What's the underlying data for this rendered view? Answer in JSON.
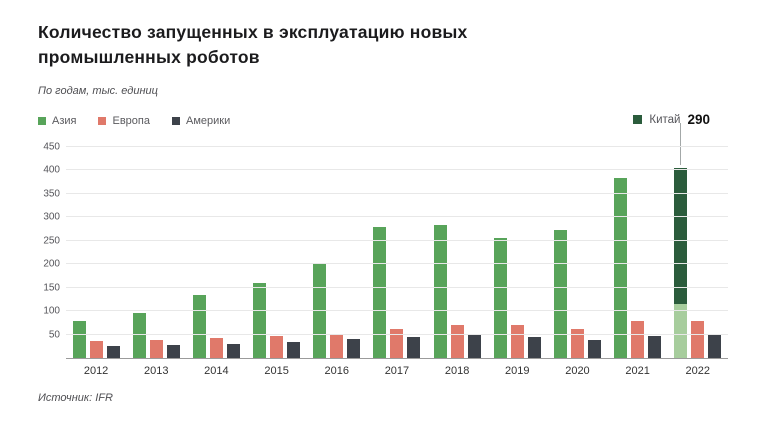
{
  "title": "Количество запущенных в эксплуатацию новых промышленных роботов",
  "subtitle": "По годам, тыс. единиц",
  "source": "Источник: IFR",
  "legend": [
    {
      "label": "Азия",
      "color": "#58a45a"
    },
    {
      "label": "Европа",
      "color": "#e0796a"
    },
    {
      "label": "Америки",
      "color": "#3d424a"
    }
  ],
  "annotation": {
    "label": "Китай",
    "value": "290",
    "color": "#2b5c3c"
  },
  "chart_data": {
    "type": "bar",
    "title": "Количество запущенных в эксплуатацию новых промышленных роботов",
    "unit": "тыс. единиц",
    "categories": [
      "2012",
      "2013",
      "2014",
      "2015",
      "2016",
      "2017",
      "2018",
      "2019",
      "2020",
      "2021",
      "2022"
    ],
    "series": [
      {
        "name": "Азия",
        "key": "asia",
        "color": "#58a45a",
        "values": [
          80,
          97,
          134,
          160,
          200,
          280,
          284,
          255,
          273,
          385,
          405
        ]
      },
      {
        "name": "Европа",
        "key": "europe",
        "color": "#e0796a",
        "values": [
          37,
          38,
          43,
          46,
          52,
          63,
          71,
          70,
          62,
          78,
          80
        ]
      },
      {
        "name": "Америки",
        "key": "americas",
        "color": "#3d424a",
        "values": [
          25,
          27,
          30,
          35,
          40,
          44,
          52,
          44,
          38,
          48,
          52
        ]
      }
    ],
    "highlight": {
      "category": "2022",
      "series": "Азия",
      "label": "Китай",
      "value": 290,
      "color": "#2b5c3c",
      "base_color": "#a7cd9d"
    },
    "ylim": [
      0,
      450
    ],
    "ytick_step": 50,
    "grid": true,
    "legend_position": "top-left"
  }
}
